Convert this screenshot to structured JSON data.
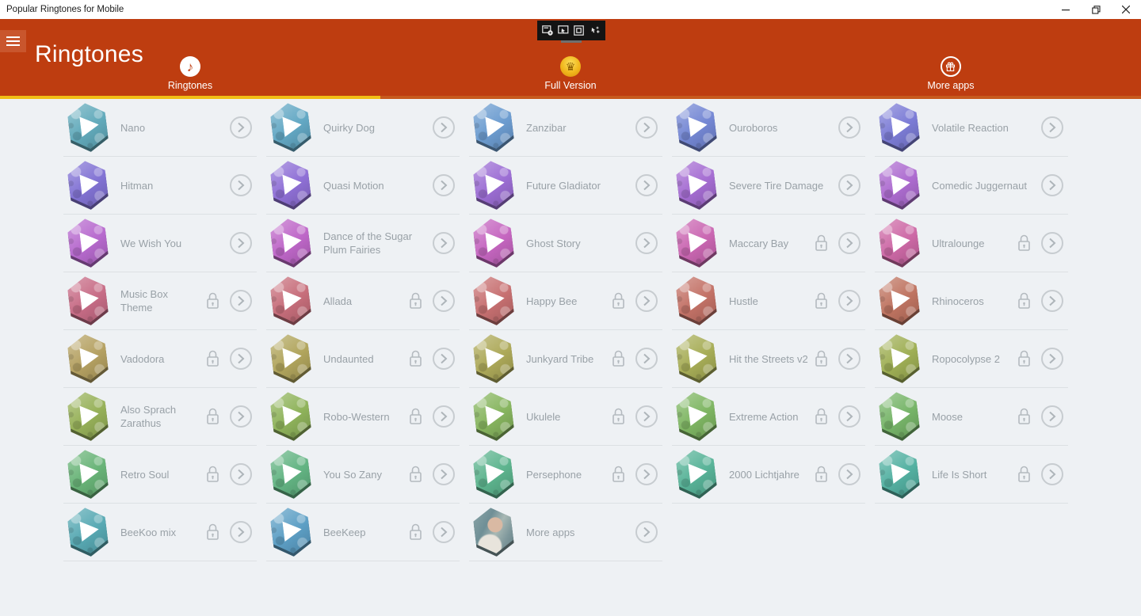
{
  "window": {
    "title": "Popular Ringtones for Mobile",
    "controls": [
      "minimize",
      "restore",
      "close"
    ]
  },
  "capture_toolbar": {
    "icons": [
      "capture-settings-icon",
      "select-window-icon",
      "capture-region-icon",
      "auto-capture-icon"
    ]
  },
  "header": {
    "title": "Ringtones",
    "accent_color": "#BE3D10",
    "selected_underline_color": "#F1BE16",
    "tabs": [
      {
        "label": "Ringtones",
        "icon": "music-note-icon",
        "selected": true
      },
      {
        "label": "Full Version",
        "icon": "crown-icon",
        "selected": false
      },
      {
        "label": "More apps",
        "icon": "gift-icon",
        "selected": false
      }
    ]
  },
  "grid": {
    "rows": [
      [
        {
          "label": "Nano",
          "locked": false,
          "color": "#62AABB",
          "kind": "ringtone"
        },
        {
          "label": "Quirky Dog",
          "locked": false,
          "color": "#63A8C4",
          "kind": "ringtone"
        },
        {
          "label": "Zanzibar",
          "locked": false,
          "color": "#6C9CD0",
          "kind": "ringtone"
        },
        {
          "label": "Ouroboros",
          "locked": false,
          "color": "#7487D4",
          "kind": "ringtone"
        },
        {
          "label": "Volatile Reaction",
          "locked": false,
          "color": "#7C7CD6",
          "kind": "ringtone"
        }
      ],
      [
        {
          "label": "Hitman",
          "locked": false,
          "color": "#8273D4",
          "kind": "ringtone"
        },
        {
          "label": "Quasi Motion",
          "locked": false,
          "color": "#8F70D6",
          "kind": "ringtone"
        },
        {
          "label": "Future Gladiator",
          "locked": false,
          "color": "#9C6ED4",
          "kind": "ringtone"
        },
        {
          "label": "Severe Tire Damage",
          "locked": false,
          "color": "#A56DD2",
          "kind": "ringtone"
        },
        {
          "label": "Comedic Juggernaut",
          "locked": false,
          "color": "#AD6CD0",
          "kind": "ringtone"
        }
      ],
      [
        {
          "label": "We Wish You",
          "locked": false,
          "color": "#B76ACE",
          "kind": "ringtone"
        },
        {
          "label": "Dance of the Sugar Plum Fairies",
          "locked": false,
          "color": "#BE67C8",
          "kind": "ringtone"
        },
        {
          "label": "Ghost Story",
          "locked": false,
          "color": "#C566C0",
          "kind": "ringtone"
        },
        {
          "label": "Maccary Bay",
          "locked": true,
          "color": "#CA67B2",
          "kind": "ringtone"
        },
        {
          "label": "Ultralounge",
          "locked": true,
          "color": "#CD69A6",
          "kind": "ringtone"
        }
      ],
      [
        {
          "label": "Music Box Theme",
          "locked": true,
          "color": "#C76C86",
          "kind": "ringtone"
        },
        {
          "label": "Allada",
          "locked": true,
          "color": "#C76E7B",
          "kind": "ringtone"
        },
        {
          "label": "Happy Bee",
          "locked": true,
          "color": "#C77071",
          "kind": "ringtone"
        },
        {
          "label": "Hustle",
          "locked": true,
          "color": "#C37267",
          "kind": "ringtone"
        },
        {
          "label": "Rhinoceros",
          "locked": true,
          "color": "#BF7461",
          "kind": "ringtone"
        }
      ],
      [
        {
          "label": "Vadodora",
          "locked": true,
          "color": "#B5A162",
          "kind": "ringtone"
        },
        {
          "label": "Undaunted",
          "locked": true,
          "color": "#B1A55D",
          "kind": "ringtone"
        },
        {
          "label": "Junkyard Tribe",
          "locked": true,
          "color": "#ADA959",
          "kind": "ringtone"
        },
        {
          "label": "Hit the Streets v2",
          "locked": true,
          "color": "#A7AD57",
          "kind": "ringtone"
        },
        {
          "label": "Ropocolypse 2",
          "locked": true,
          "color": "#9FAF55",
          "kind": "ringtone"
        }
      ],
      [
        {
          "label": "Also Sprach Zarathus",
          "locked": true,
          "color": "#97B159",
          "kind": "ringtone"
        },
        {
          "label": "Robo-Western",
          "locked": true,
          "color": "#8FB35B",
          "kind": "ringtone"
        },
        {
          "label": "Ukulele",
          "locked": true,
          "color": "#87B55F",
          "kind": "ringtone"
        },
        {
          "label": "Extreme Action",
          "locked": true,
          "color": "#7FB663",
          "kind": "ringtone"
        },
        {
          "label": "Moose",
          "locked": true,
          "color": "#77B569",
          "kind": "ringtone"
        }
      ],
      [
        {
          "label": "Retro Soul",
          "locked": true,
          "color": "#69B478",
          "kind": "ringtone"
        },
        {
          "label": "You So Zany",
          "locked": true,
          "color": "#63B483",
          "kind": "ringtone"
        },
        {
          "label": "Persephone",
          "locked": true,
          "color": "#5DB48E",
          "kind": "ringtone"
        },
        {
          "label": "2000 Lichtjahre",
          "locked": true,
          "color": "#58B398",
          "kind": "ringtone"
        },
        {
          "label": "Life Is Short",
          "locked": true,
          "color": "#54B1A2",
          "kind": "ringtone"
        }
      ],
      [
        {
          "label": "BeeKoo mix",
          "locked": true,
          "color": "#58A9B3",
          "kind": "ringtone"
        },
        {
          "label": "BeeKeep",
          "locked": true,
          "color": "#5D9FC5",
          "kind": "ringtone"
        },
        {
          "label": "More apps",
          "locked": false,
          "color": "#7E979B",
          "kind": "photo"
        }
      ]
    ]
  }
}
